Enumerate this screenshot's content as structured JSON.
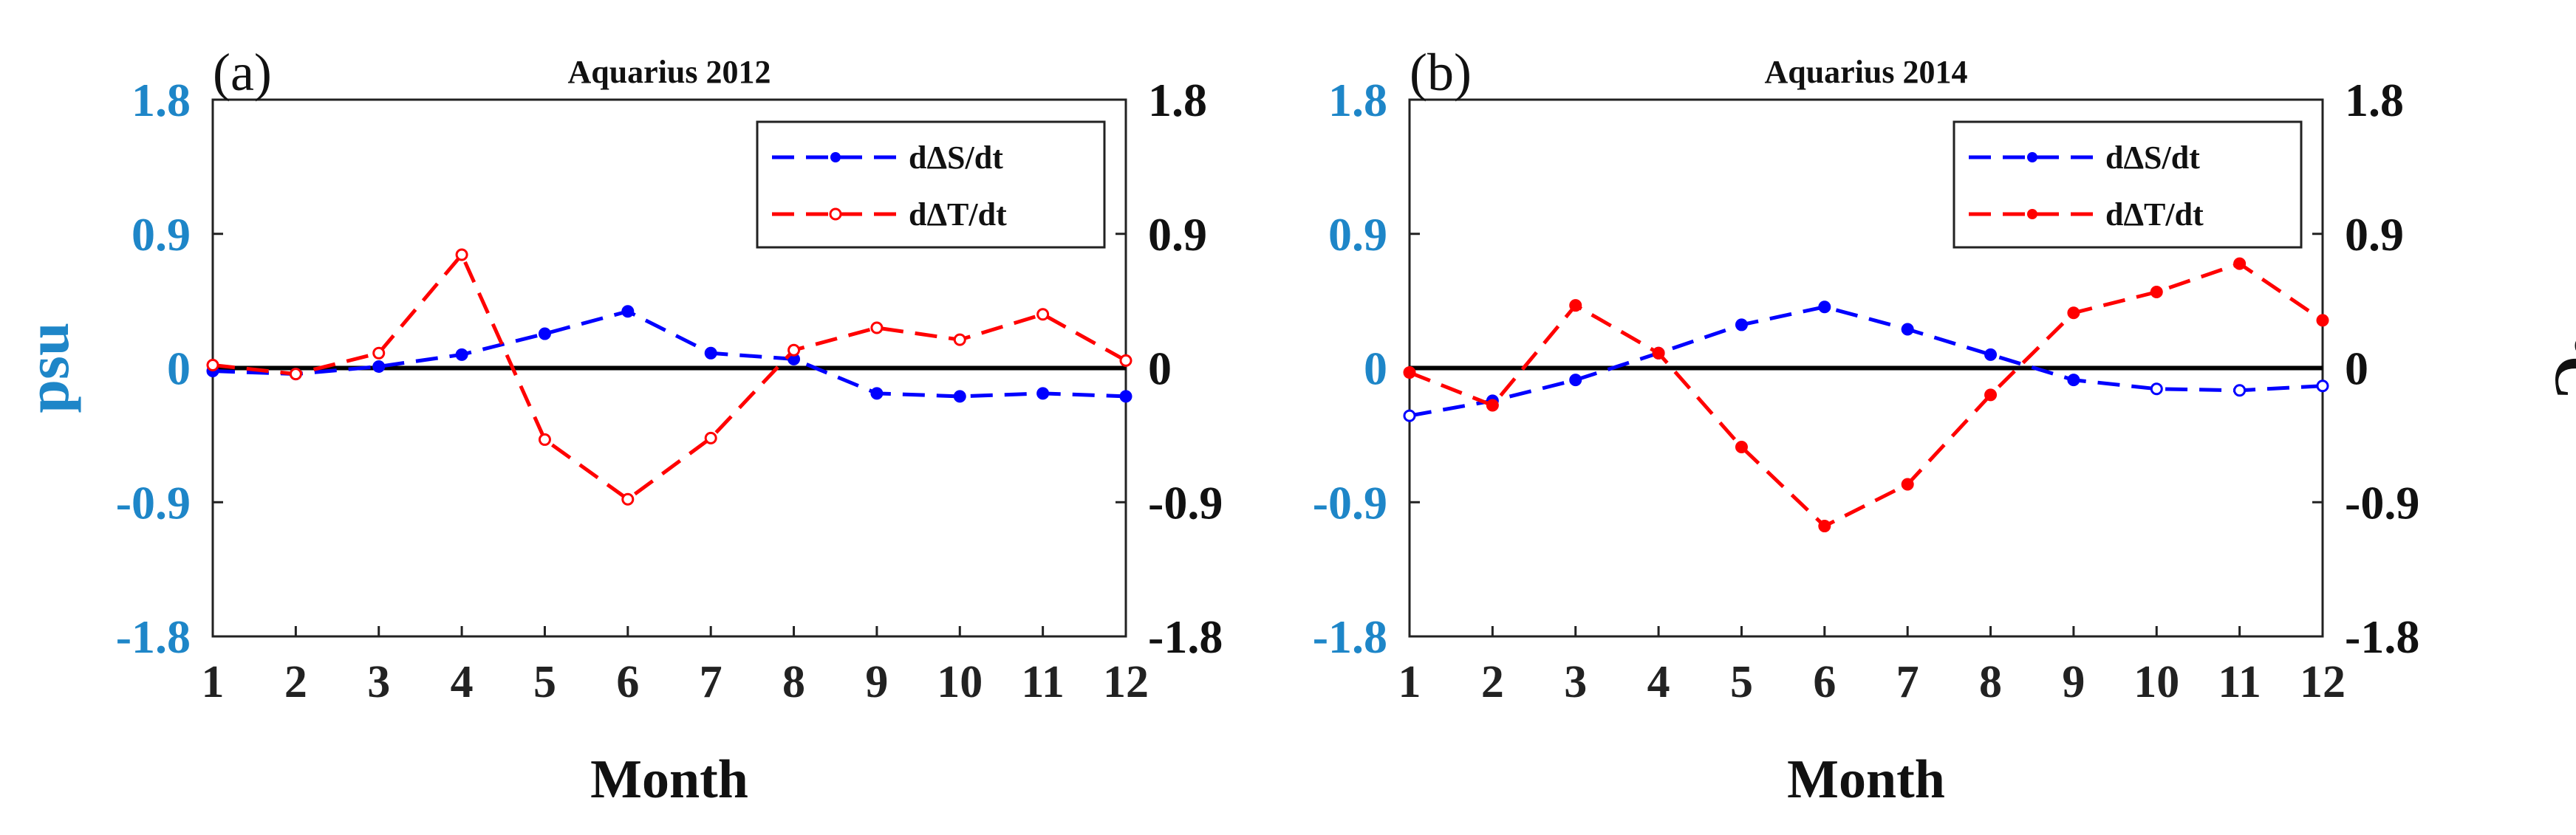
{
  "colors": {
    "salinity": "#0000ff",
    "temperature": "#ff0000",
    "left_axis": "#1e86c8",
    "right_axis": "#111111",
    "zero_line": "#000000"
  },
  "shared": {
    "xlabel": "Month",
    "ylabel_left": "psu",
    "ylabel_right_main": "C",
    "ylabel_right_super": "o",
    "yticks": [
      "1.8",
      "0.9",
      "0",
      "-0.9",
      "-1.8"
    ],
    "ytick_values": [
      1.8,
      0.9,
      0,
      -0.9,
      -1.8
    ],
    "ylim": [
      -1.8,
      1.8
    ],
    "xlim": [
      1,
      12
    ],
    "xticks": [
      "1",
      "2",
      "3",
      "4",
      "5",
      "6",
      "7",
      "8",
      "9",
      "10",
      "11",
      "12"
    ]
  },
  "chart_data": [
    {
      "type": "line",
      "panel_label": "(a)",
      "title": "Aquarius 2012",
      "xlabel": "Month",
      "ylabel": "psu",
      "ylabel_right": "oC",
      "x": [
        1,
        2,
        3,
        4,
        5,
        6,
        7,
        8,
        9,
        10,
        11,
        12
      ],
      "ylim": [
        -1.8,
        1.8
      ],
      "legend_position": "top-right",
      "series": [
        {
          "name": "dΔS/dt",
          "key": "salinity",
          "values": [
            -0.02,
            -0.04,
            0.01,
            0.09,
            0.23,
            0.38,
            0.1,
            0.06,
            -0.17,
            -0.19,
            -0.17,
            -0.19
          ]
        },
        {
          "name": "dΔT/dt",
          "key": "temperature",
          "values": [
            0.02,
            -0.04,
            0.1,
            0.76,
            -0.48,
            -0.88,
            -0.47,
            0.12,
            0.27,
            0.19,
            0.36,
            0.05
          ]
        }
      ]
    },
    {
      "type": "line",
      "panel_label": "(b)",
      "title": "Aquarius 2014",
      "xlabel": "Month",
      "ylabel": "psu",
      "ylabel_right": "oC",
      "x": [
        1,
        2,
        3,
        4,
        5,
        6,
        7,
        8,
        9,
        10,
        11,
        12
      ],
      "ylim": [
        -1.8,
        1.8
      ],
      "legend_position": "top-right",
      "series": [
        {
          "name": "dΔS/dt",
          "key": "salinity",
          "values": [
            -0.32,
            -0.22,
            -0.08,
            0.1,
            0.29,
            0.41,
            0.26,
            0.09,
            -0.08,
            -0.14,
            -0.15,
            -0.12
          ]
        },
        {
          "name": "dΔT/dt",
          "key": "temperature",
          "values": [
            -0.03,
            -0.25,
            0.42,
            0.1,
            -0.53,
            -1.06,
            -0.78,
            -0.18,
            0.37,
            0.51,
            0.7,
            0.32
          ]
        }
      ]
    }
  ]
}
